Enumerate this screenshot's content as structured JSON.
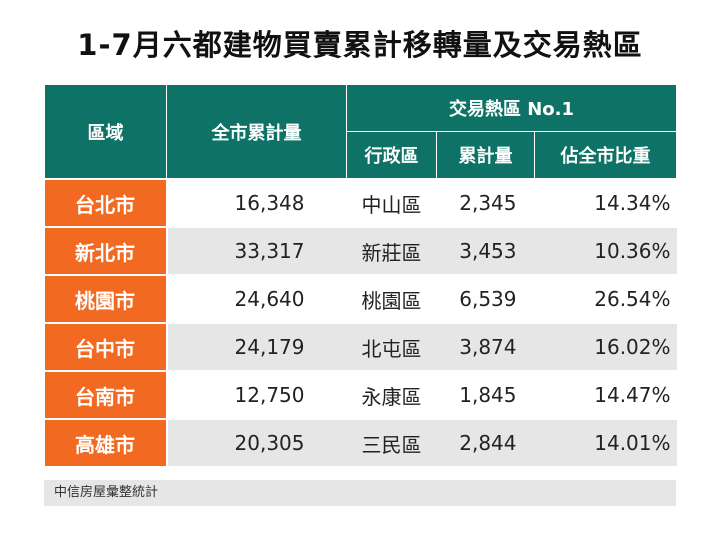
{
  "title": "1-7月六都建物買賣累計移轉量及交易熱區",
  "table": {
    "headers": {
      "region": "區域",
      "city_total": "全市累計量",
      "hot_zone": "交易熱區 No.1",
      "district": "行政區",
      "district_total": "累計量",
      "share": "佔全市比重"
    },
    "rows": [
      {
        "city": "台北市",
        "total": "16,348",
        "district": "中山區",
        "count": "2,345",
        "share": "14.34%"
      },
      {
        "city": "新北市",
        "total": "33,317",
        "district": "新莊區",
        "count": "3,453",
        "share": "10.36%"
      },
      {
        "city": "桃園市",
        "total": "24,640",
        "district": "桃園區",
        "count": "6,539",
        "share": "26.54%"
      },
      {
        "city": "台中市",
        "total": "24,179",
        "district": "北屯區",
        "count": "3,874",
        "share": "16.02%"
      },
      {
        "city": "台南市",
        "total": "12,750",
        "district": "永康區",
        "count": "1,845",
        "share": "14.47%"
      },
      {
        "city": "高雄市",
        "total": "20,305",
        "district": "三民區",
        "count": "2,844",
        "share": "14.01%"
      }
    ]
  },
  "source": "中信房屋彙整統計",
  "colors": {
    "header_bg": "#0e7366",
    "city_bg": "#f26a22",
    "row_alt_bg": "#e6e6e6"
  }
}
